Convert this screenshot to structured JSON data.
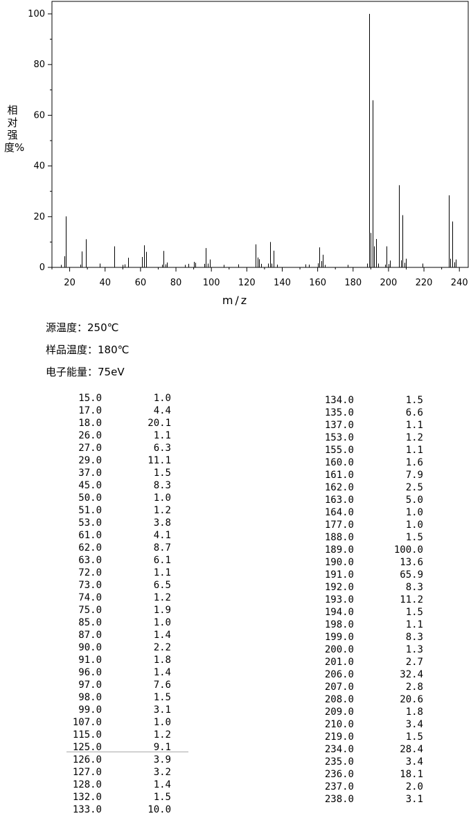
{
  "chart_data": {
    "type": "bar",
    "title": "",
    "xlabel": "m/z",
    "ylabel": "相对强度%",
    "xlim": [
      10,
      245
    ],
    "ylim": [
      0,
      100
    ],
    "xticks": [
      20,
      40,
      60,
      80,
      100,
      120,
      140,
      160,
      180,
      200,
      220,
      240
    ],
    "yticks": [
      0,
      20,
      40,
      60,
      80,
      100
    ],
    "peaks": [
      [
        15,
        1.0
      ],
      [
        17,
        4.4
      ],
      [
        18,
        20.1
      ],
      [
        26,
        1.1
      ],
      [
        27,
        6.3
      ],
      [
        29,
        11.1
      ],
      [
        37,
        1.5
      ],
      [
        45,
        8.3
      ],
      [
        50,
        1.0
      ],
      [
        51,
        1.2
      ],
      [
        53,
        3.8
      ],
      [
        61,
        4.1
      ],
      [
        62,
        8.7
      ],
      [
        63,
        6.1
      ],
      [
        72,
        1.1
      ],
      [
        73,
        6.5
      ],
      [
        74,
        1.2
      ],
      [
        75,
        1.9
      ],
      [
        85,
        1.0
      ],
      [
        87,
        1.4
      ],
      [
        90,
        2.2
      ],
      [
        91,
        1.8
      ],
      [
        96,
        1.4
      ],
      [
        97,
        7.6
      ],
      [
        98,
        1.5
      ],
      [
        99,
        3.1
      ],
      [
        107,
        1.0
      ],
      [
        115,
        1.2
      ],
      [
        125,
        9.1
      ],
      [
        126,
        3.9
      ],
      [
        127,
        3.2
      ],
      [
        128,
        1.4
      ],
      [
        132,
        1.5
      ],
      [
        133,
        10.0
      ],
      [
        134,
        1.5
      ],
      [
        135,
        6.6
      ],
      [
        137,
        1.1
      ],
      [
        153,
        1.2
      ],
      [
        155,
        1.1
      ],
      [
        160,
        1.6
      ],
      [
        161,
        7.9
      ],
      [
        162,
        2.5
      ],
      [
        163,
        5.0
      ],
      [
        164,
        1.0
      ],
      [
        177,
        1.0
      ],
      [
        188,
        1.5
      ],
      [
        189,
        100.0
      ],
      [
        190,
        13.6
      ],
      [
        191,
        65.9
      ],
      [
        192,
        8.3
      ],
      [
        193,
        11.2
      ],
      [
        194,
        1.5
      ],
      [
        198,
        1.1
      ],
      [
        199,
        8.3
      ],
      [
        200,
        1.3
      ],
      [
        201,
        2.7
      ],
      [
        206,
        32.4
      ],
      [
        207,
        2.8
      ],
      [
        208,
        20.6
      ],
      [
        209,
        1.8
      ],
      [
        210,
        3.4
      ],
      [
        219,
        1.5
      ],
      [
        234,
        28.4
      ],
      [
        235,
        3.4
      ],
      [
        236,
        18.1
      ],
      [
        237,
        2.0
      ],
      [
        238,
        3.1
      ]
    ]
  },
  "conditions": {
    "source_temp": "源温度：250℃",
    "sample_temp": "样品温度：180℃",
    "electron_energy": "电子能量：75eV"
  },
  "table_left": [
    [
      "15.0",
      "1.0"
    ],
    [
      "17.0",
      "4.4"
    ],
    [
      "18.0",
      "20.1"
    ],
    [
      "26.0",
      "1.1"
    ],
    [
      "27.0",
      "6.3"
    ],
    [
      "29.0",
      "11.1"
    ],
    [
      "37.0",
      "1.5"
    ],
    [
      "45.0",
      "8.3"
    ],
    [
      "50.0",
      "1.0"
    ],
    [
      "51.0",
      "1.2"
    ],
    [
      "53.0",
      "3.8"
    ],
    [
      "61.0",
      "4.1"
    ],
    [
      "62.0",
      "8.7"
    ],
    [
      "63.0",
      "6.1"
    ],
    [
      "72.0",
      "1.1"
    ],
    [
      "73.0",
      "6.5"
    ],
    [
      "74.0",
      "1.2"
    ],
    [
      "75.0",
      "1.9"
    ],
    [
      "85.0",
      "1.0"
    ],
    [
      "87.0",
      "1.4"
    ],
    [
      "90.0",
      "2.2"
    ],
    [
      "91.0",
      "1.8"
    ],
    [
      "96.0",
      "1.4"
    ],
    [
      "97.0",
      "7.6"
    ],
    [
      "98.0",
      "1.5"
    ],
    [
      "99.0",
      "3.1"
    ],
    [
      "107.0",
      "1.0"
    ],
    [
      "115.0",
      "1.2"
    ],
    [
      "125.0",
      "9.1"
    ],
    [
      "126.0",
      "3.9"
    ],
    [
      "127.0",
      "3.2"
    ],
    [
      "128.0",
      "1.4"
    ],
    [
      "132.0",
      "1.5"
    ],
    [
      "133.0",
      "10.0"
    ]
  ],
  "table_right": [
    [
      "134.0",
      "1.5"
    ],
    [
      "135.0",
      "6.6"
    ],
    [
      "137.0",
      "1.1"
    ],
    [
      "153.0",
      "1.2"
    ],
    [
      "155.0",
      "1.1"
    ],
    [
      "160.0",
      "1.6"
    ],
    [
      "161.0",
      "7.9"
    ],
    [
      "162.0",
      "2.5"
    ],
    [
      "163.0",
      "5.0"
    ],
    [
      "164.0",
      "1.0"
    ],
    [
      "177.0",
      "1.0"
    ],
    [
      "188.0",
      "1.5"
    ],
    [
      "189.0",
      "100.0"
    ],
    [
      "190.0",
      "13.6"
    ],
    [
      "191.0",
      "65.9"
    ],
    [
      "192.0",
      "8.3"
    ],
    [
      "193.0",
      "11.2"
    ],
    [
      "194.0",
      "1.5"
    ],
    [
      "198.0",
      "1.1"
    ],
    [
      "199.0",
      "8.3"
    ],
    [
      "200.0",
      "1.3"
    ],
    [
      "201.0",
      "2.7"
    ],
    [
      "206.0",
      "32.4"
    ],
    [
      "207.0",
      "2.8"
    ],
    [
      "208.0",
      "20.6"
    ],
    [
      "209.0",
      "1.8"
    ],
    [
      "210.0",
      "3.4"
    ],
    [
      "219.0",
      "1.5"
    ],
    [
      "234.0",
      "28.4"
    ],
    [
      "235.0",
      "3.4"
    ],
    [
      "236.0",
      "18.1"
    ],
    [
      "237.0",
      "2.0"
    ],
    [
      "238.0",
      "3.1"
    ]
  ]
}
